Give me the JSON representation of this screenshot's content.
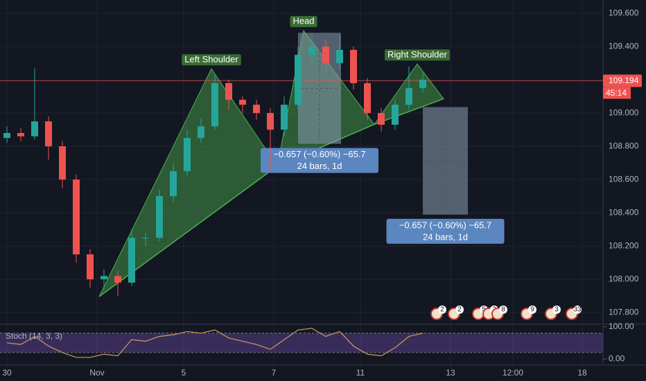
{
  "chart_data": {
    "type": "candlestick",
    "x": [
      2,
      6,
      10,
      14,
      18,
      22,
      26,
      30,
      34,
      38,
      42,
      46,
      50,
      54,
      58,
      62,
      66,
      70,
      74,
      78,
      82,
      86,
      90,
      94,
      98,
      102,
      106,
      110,
      114,
      118,
      122
    ],
    "open": [
      108.85,
      108.88,
      108.86,
      108.95,
      108.8,
      108.6,
      108.15,
      108.0,
      108.02,
      107.98,
      108.25,
      108.25,
      108.5,
      108.65,
      108.85,
      108.92,
      109.18,
      109.08,
      109.05,
      109.0,
      108.9,
      109.05,
      109.35,
      109.4,
      109.3,
      109.38,
      109.18,
      109.0,
      108.93,
      109.05,
      109.15
    ],
    "high": [
      108.92,
      108.91,
      109.27,
      108.98,
      108.83,
      108.63,
      108.18,
      108.06,
      108.05,
      108.3,
      108.28,
      108.54,
      108.7,
      108.9,
      108.97,
      109.23,
      109.2,
      109.1,
      109.08,
      109.03,
      109.1,
      109.4,
      109.48,
      109.44,
      109.47,
      109.4,
      109.21,
      109.03,
      109.08,
      109.28,
      109.24
    ],
    "low": [
      108.82,
      108.83,
      108.84,
      108.72,
      108.55,
      108.1,
      107.95,
      107.94,
      107.9,
      107.96,
      108.2,
      108.23,
      108.46,
      108.62,
      108.82,
      108.9,
      109.02,
      109.0,
      108.96,
      108.65,
      108.86,
      109.02,
      109.3,
      109.25,
      109.26,
      109.14,
      108.96,
      108.89,
      108.9,
      109.02,
      109.12
    ],
    "close": [
      108.88,
      108.86,
      108.95,
      108.8,
      108.6,
      108.15,
      108.0,
      108.02,
      107.98,
      108.25,
      108.25,
      108.5,
      108.65,
      108.85,
      108.92,
      109.18,
      109.08,
      109.05,
      109.0,
      108.9,
      109.05,
      109.35,
      109.4,
      109.3,
      109.38,
      109.18,
      109.0,
      108.93,
      109.05,
      109.15,
      109.2
    ],
    "up_color": "#26a69a",
    "down_color": "#ef5350",
    "xlim": [
      0,
      174
    ],
    "xticks": [
      {
        "value": 2,
        "label": "30"
      },
      {
        "value": 28,
        "label": "Nov"
      },
      {
        "value": 53,
        "label": "5"
      },
      {
        "value": 79,
        "label": "7"
      },
      {
        "value": 104,
        "label": "11"
      },
      {
        "value": 130,
        "label": "13"
      },
      {
        "value": 148,
        "label": "12:00"
      },
      {
        "value": 168,
        "label": "18"
      }
    ],
    "ylim": [
      107.73,
      109.68
    ],
    "yticks": [
      {
        "value": 107.8,
        "label": "107.800"
      },
      {
        "value": 108,
        "label": "108.000"
      },
      {
        "value": 108.2,
        "label": "108.200"
      },
      {
        "value": 108.4,
        "label": "108.400"
      },
      {
        "value": 108.6,
        "label": "108.600"
      },
      {
        "value": 108.8,
        "label": "108.800"
      },
      {
        "value": 109,
        "label": "109.000"
      },
      {
        "value": 109.2,
        "label": "109.200"
      },
      {
        "value": 109.4,
        "label": "109.400"
      },
      {
        "value": 109.6,
        "label": "109.600"
      }
    ],
    "grid": true,
    "last_price": {
      "value": 109.194,
      "label": "109.194",
      "color": "#ef5350"
    },
    "countdown": "45:14",
    "pattern": {
      "color": "#4caf50",
      "points": [
        [
          28.6,
          107.896
        ],
        [
          61,
          109.266
        ],
        [
          80,
          108.681
        ],
        [
          87.6,
          109.496
        ],
        [
          108,
          108.932
        ],
        [
          120.4,
          109.295
        ],
        [
          128,
          109.086
        ]
      ],
      "labels": [
        {
          "text": "Left Shoulder",
          "x": 61,
          "y": 109.266
        },
        {
          "text": "Head",
          "x": 87.6,
          "y": 109.496
        },
        {
          "text": "Right Shoulder",
          "x": 120.4,
          "y": 109.295
        }
      ]
    },
    "measures": [
      {
        "x": [
          86,
          98.4
        ],
        "y": [
          109.483,
          108.815
        ],
        "text": "−0.657 (−0.60%) −65.7",
        "bars": "24 bars, 1d"
      },
      {
        "x": [
          122,
          135
        ],
        "y": [
          109.036,
          108.389
        ],
        "text": "−0.657 (−0.60%) −65.7",
        "bars": "24 bars, 1d"
      }
    ],
    "events": [
      {
        "x": 126,
        "label": "2"
      },
      {
        "x": 131,
        "label": "2"
      },
      {
        "x": 138,
        "label": "5"
      },
      {
        "x": 141,
        "label": "2"
      },
      {
        "x": 143.6,
        "label": "8"
      },
      {
        "x": 152,
        "label": "9"
      },
      {
        "x": 159,
        "label": "3"
      },
      {
        "x": 165,
        "label": "33"
      }
    ],
    "stoch": {
      "title": "Stoch (14, 3, 3)",
      "color": "#d29b5c",
      "values": [
        50,
        45,
        70,
        40,
        20,
        5,
        5,
        15,
        10,
        60,
        55,
        70,
        75,
        85,
        80,
        90,
        65,
        55,
        45,
        30,
        60,
        90,
        95,
        70,
        85,
        40,
        15,
        10,
        35,
        70,
        80
      ],
      "band": [
        20,
        80
      ],
      "ylim": [
        -8,
        112
      ],
      "yticks": [
        {
          "value": 0,
          "label": "0.00"
        },
        {
          "value": 100,
          "label": "100.00"
        }
      ]
    }
  }
}
